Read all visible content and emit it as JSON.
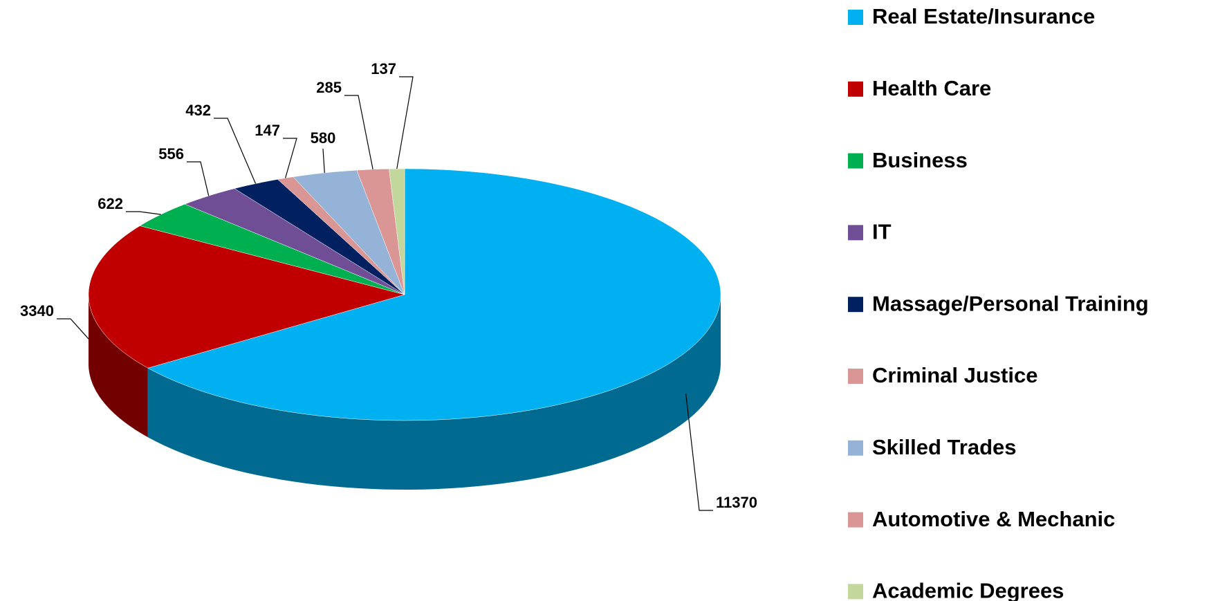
{
  "chart_data": {
    "type": "pie3d",
    "categories": [
      "Real Estate/Insurance",
      "Health Care",
      "Business",
      "IT",
      "Massage/Personal Training",
      "Criminal Justice",
      "Skilled Trades",
      "Automotive & Mechanic",
      "Academic Degrees"
    ],
    "values": [
      11370,
      3340,
      622,
      556,
      432,
      147,
      580,
      285,
      137
    ],
    "colors": [
      "#00b0f0",
      "#c00000",
      "#00b050",
      "#6f4e96",
      "#002060",
      "#d99694",
      "#95b3d7",
      "#d99694",
      "#c3d69b"
    ],
    "legend": "right"
  }
}
